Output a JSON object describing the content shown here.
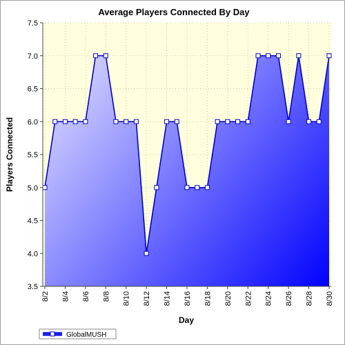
{
  "chart_data": {
    "type": "area",
    "title": "Average Players Connected By Day",
    "xlabel": "Day",
    "ylabel": "Players Connected",
    "ylim": [
      3.5,
      7.5
    ],
    "yticks": [
      "3.5",
      "4.0",
      "4.5",
      "5.0",
      "5.5",
      "6.0",
      "6.5",
      "7.0",
      "7.5"
    ],
    "xticks": [
      "8/2",
      "8/4",
      "8/6",
      "8/8",
      "8/10",
      "8/12",
      "8/14",
      "8/16",
      "8/18",
      "8/20",
      "8/22",
      "8/24",
      "8/26",
      "8/28",
      "8/30"
    ],
    "x": [
      "8/2",
      "8/3",
      "8/4",
      "8/5",
      "8/6",
      "8/7",
      "8/8",
      "8/9",
      "8/10",
      "8/11",
      "8/12",
      "8/13",
      "8/14",
      "8/15",
      "8/16",
      "8/17",
      "8/18",
      "8/19",
      "8/20",
      "8/21",
      "8/22",
      "8/23",
      "8/24",
      "8/25",
      "8/26",
      "8/27",
      "8/28",
      "8/29",
      "8/30"
    ],
    "series": [
      {
        "name": "GlobalMUSH",
        "values": [
          5,
          6,
          6,
          6,
          6,
          7,
          7,
          6,
          6,
          6,
          4,
          5,
          6,
          6,
          5,
          5,
          5,
          6,
          6,
          6,
          6,
          7,
          7,
          7,
          6,
          7,
          6,
          6,
          7
        ]
      }
    ],
    "grid": true,
    "legend": "bottom-left",
    "colors": {
      "plot_background": "#ffffdd",
      "fill_top": "#e6e6ff",
      "fill_bottom": "#0000ff",
      "line": "#0000cc",
      "marker_fill": "#ffffff"
    }
  }
}
